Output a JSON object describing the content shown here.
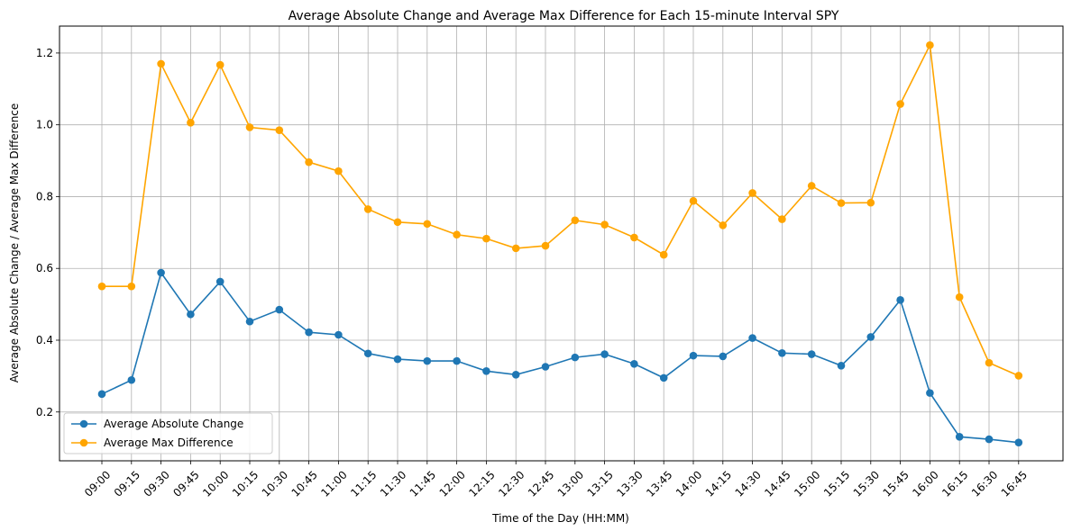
{
  "chart_data": {
    "type": "line",
    "title": "Average Absolute Change and Average Max Difference for Each 15-minute Interval SPY",
    "xlabel": "Time of the Day (HH:MM)",
    "ylabel": "Average Absolute Change / Average Max Difference",
    "categories": [
      "09:00",
      "09:15",
      "09:30",
      "09:45",
      "10:00",
      "10:15",
      "10:30",
      "10:45",
      "11:00",
      "11:15",
      "11:30",
      "11:45",
      "12:00",
      "12:15",
      "12:30",
      "12:45",
      "13:00",
      "13:15",
      "13:30",
      "13:45",
      "14:00",
      "14:15",
      "14:30",
      "14:45",
      "15:00",
      "15:15",
      "15:30",
      "15:45",
      "16:00",
      "16:15",
      "16:30",
      "16:45"
    ],
    "ylim": [
      0.064,
      1.275
    ],
    "yticks": [
      "0.2",
      "0.4",
      "0.6",
      "0.8",
      "1.0",
      "1.2"
    ],
    "grid": true,
    "legend_position": "lower-left",
    "series": [
      {
        "name": "Average Absolute Change",
        "color": "#1f77b4",
        "values": [
          0.25,
          0.289,
          0.588,
          0.472,
          0.563,
          0.452,
          0.485,
          0.422,
          0.415,
          0.363,
          0.347,
          0.342,
          0.342,
          0.314,
          0.304,
          0.326,
          0.352,
          0.361,
          0.334,
          0.295,
          0.357,
          0.355,
          0.406,
          0.364,
          0.361,
          0.329,
          0.409,
          0.512,
          0.253,
          0.131,
          0.124,
          0.115
        ]
      },
      {
        "name": "Average Max Difference",
        "color": "#ffa500",
        "values": [
          0.55,
          0.55,
          1.17,
          1.006,
          1.167,
          0.993,
          0.985,
          0.896,
          0.871,
          0.765,
          0.729,
          0.724,
          0.694,
          0.683,
          0.656,
          0.663,
          0.734,
          0.722,
          0.686,
          0.638,
          0.788,
          0.72,
          0.81,
          0.737,
          0.83,
          0.782,
          0.783,
          1.058,
          1.222,
          0.52,
          0.337,
          0.301
        ]
      }
    ]
  }
}
